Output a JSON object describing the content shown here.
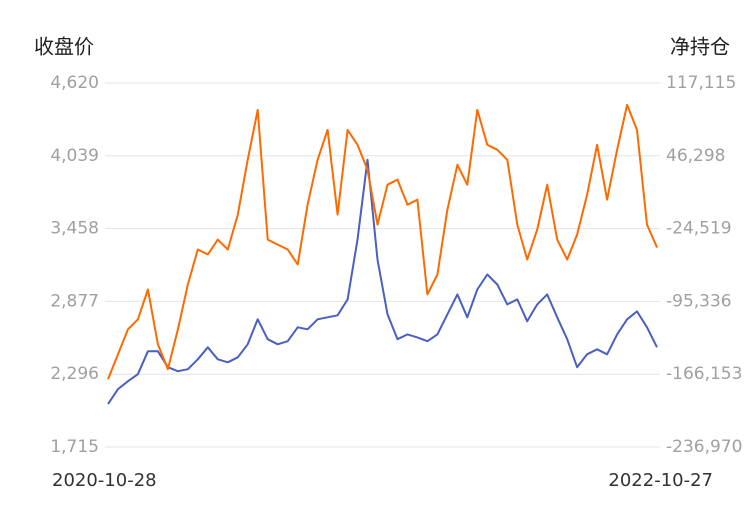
{
  "chart_data": {
    "type": "line",
    "ylabel": "收盘价",
    "y2label": "净持仓",
    "categories": [
      "2020-10-28",
      null,
      null,
      null,
      null,
      null,
      null,
      null,
      null,
      null,
      null,
      null,
      null,
      null,
      null,
      null,
      null,
      null,
      null,
      null,
      null,
      null,
      null,
      null,
      null,
      null,
      null,
      null,
      null,
      null,
      null,
      null,
      null,
      null,
      null,
      null,
      null,
      null,
      null,
      null,
      null,
      null,
      null,
      null,
      null,
      null,
      null,
      null,
      null,
      null,
      null,
      null,
      null,
      null,
      null,
      "2022-10-27"
    ],
    "series": [
      {
        "color": "#4a5fc1",
        "values": [
          2057,
          2177,
          2240,
          2296,
          2479,
          2479,
          2352,
          2320,
          2336,
          2415,
          2511,
          2415,
          2391,
          2431,
          2535,
          2734,
          2575,
          2535,
          2559,
          2670,
          2654,
          2734,
          2750,
          2766,
          2893,
          3370,
          4007,
          3211,
          2774,
          2575,
          2614,
          2590,
          2559,
          2614,
          2774,
          2933,
          2750,
          2972,
          3092,
          3012,
          2853,
          2893,
          2718,
          2853,
          2933,
          2750,
          2575,
          2352,
          2455,
          2495,
          2455,
          2614,
          2734,
          2797,
          2670,
          2511
        ]
      },
      {
        "color": "#ff6a00",
        "axis": "y2",
        "values": [
          -171005,
          -146752,
          -122500,
          -112799,
          -83696,
          -137051,
          -161304,
          -122500,
          -78845,
          -44892,
          -49742,
          -35191,
          -44892,
          -10938,
          42417,
          90922,
          -35191,
          -40041,
          -44892,
          -59443,
          -1237,
          42417,
          71520,
          -10938,
          71520,
          56969,
          32716,
          -20639,
          18165,
          23015,
          -1237,
          3613,
          -88546,
          -69144,
          -6088,
          37567,
          18165,
          90922,
          56969,
          52118,
          42417,
          -20639,
          -54593,
          -25490,
          18165,
          -35191,
          -54593,
          -30340,
          8464,
          56969,
          3613,
          52118,
          95773,
          71520,
          -20639,
          -42952
        ]
      }
    ],
    "ylim": [
      1715,
      4620
    ],
    "yticks": [
      {
        "value": 1715,
        "label": "1,715"
      },
      {
        "value": 2296,
        "label": "2,296"
      },
      {
        "value": 2877,
        "label": "2,877"
      },
      {
        "value": 3458,
        "label": "3,458"
      },
      {
        "value": 4039,
        "label": "4,039"
      },
      {
        "value": 4620,
        "label": "4,620"
      }
    ],
    "y2lim": [
      -236970,
      117115
    ],
    "y2ticks": [
      {
        "value": -236970,
        "label": "-236,970"
      },
      {
        "value": -166153,
        "label": "-166,153"
      },
      {
        "value": -95336,
        "label": "-95,336"
      },
      {
        "value": -24519,
        "label": "-24,519"
      },
      {
        "value": 46298,
        "label": "46,298"
      },
      {
        "value": 117115,
        "label": "117,115"
      }
    ],
    "grid": true
  }
}
